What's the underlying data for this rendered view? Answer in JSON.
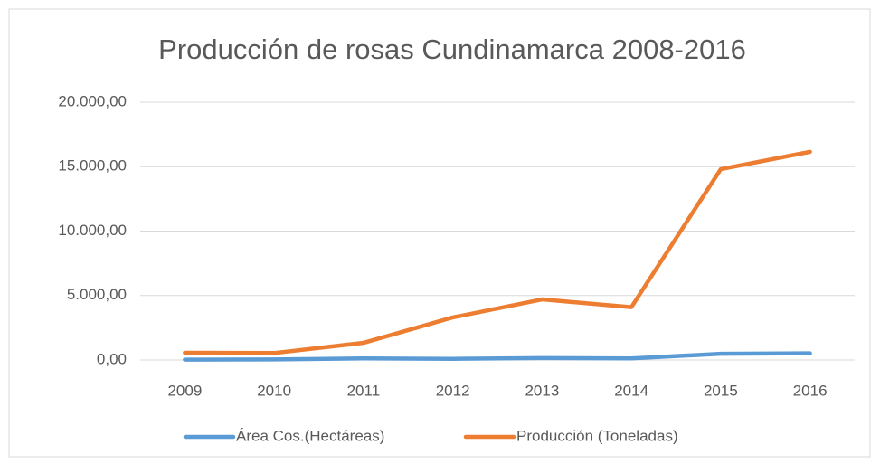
{
  "chart_data": {
    "type": "line",
    "title": "Producción de rosas Cundinamarca 2008-2016",
    "categories": [
      "2009",
      "2010",
      "2011",
      "2012",
      "2013",
      "2014",
      "2015",
      "2016"
    ],
    "series": [
      {
        "name": "Área Cos.(Hectáreas)",
        "color": "#5b9bd5",
        "values": [
          30,
          40,
          120,
          90,
          150,
          120,
          480,
          520
        ]
      },
      {
        "name": "Producción (Toneladas)",
        "color": "#ed7d31",
        "values": [
          560,
          540,
          1330,
          3300,
          4700,
          4100,
          14800,
          16150
        ]
      }
    ],
    "ylim": [
      0,
      20000
    ],
    "yticks": [
      {
        "value": 0,
        "label": "0,00"
      },
      {
        "value": 5000,
        "label": "5.000,00"
      },
      {
        "value": 10000,
        "label": "10.000,00"
      },
      {
        "value": 15000,
        "label": "15.000,00"
      },
      {
        "value": 20000,
        "label": "20.000,00"
      }
    ],
    "grid": true,
    "legend": "bottom"
  }
}
